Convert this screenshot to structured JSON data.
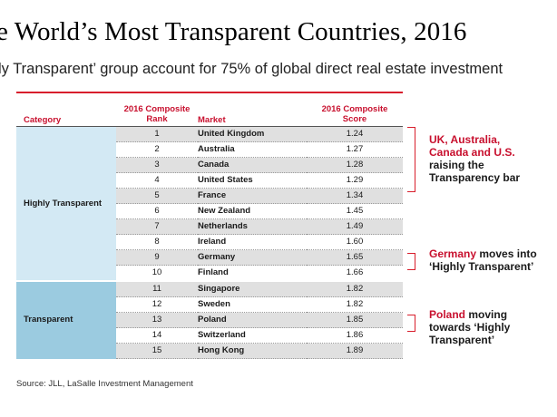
{
  "title": "e World’s Most Transparent Countries, 2016",
  "subtitle": "ly Transparent’ group account for 75% of global direct real estate investment",
  "table": {
    "headers": {
      "category": "Category",
      "rank": "2016 Composite\nRank",
      "market": "Market",
      "score": "2016 Composite\nScore"
    },
    "groups": [
      {
        "label": "Highly Transparent",
        "color": "#d3e9f4"
      },
      {
        "label": "Transparent",
        "color": "#9bcbe0"
      }
    ],
    "rows": [
      {
        "rank": "1",
        "market": "United Kingdom",
        "score": "1.24"
      },
      {
        "rank": "2",
        "market": "Australia",
        "score": "1.27"
      },
      {
        "rank": "3",
        "market": "Canada",
        "score": "1.28"
      },
      {
        "rank": "4",
        "market": "United States",
        "score": "1.29"
      },
      {
        "rank": "5",
        "market": "France",
        "score": "1.34"
      },
      {
        "rank": "6",
        "market": "New Zealand",
        "score": "1.45"
      },
      {
        "rank": "7",
        "market": "Netherlands",
        "score": "1.49"
      },
      {
        "rank": "8",
        "market": "Ireland",
        "score": "1.60"
      },
      {
        "rank": "9",
        "market": "Germany",
        "score": "1.65"
      },
      {
        "rank": "10",
        "market": "Finland",
        "score": "1.66"
      },
      {
        "rank": "11",
        "market": "Singapore",
        "score": "1.82"
      },
      {
        "rank": "12",
        "market": "Sweden",
        "score": "1.82"
      },
      {
        "rank": "13",
        "market": "Poland",
        "score": "1.85"
      },
      {
        "rank": "14",
        "market": "Switzerland",
        "score": "1.86"
      },
      {
        "rank": "15",
        "market": "Hong Kong",
        "score": "1.89"
      }
    ]
  },
  "notes": [
    {
      "red": "UK, Australia, Canada and U.S.",
      "black": "raising the Transparency bar"
    },
    {
      "red": "Germany",
      "black": "moves into ‘Highly Transparent’"
    },
    {
      "red": "Poland",
      "black": "moving towards ‘Highly Transparent’"
    }
  ],
  "source": "Source: JLL, LaSalle Investment Management",
  "colors": {
    "accent": "#c8102e",
    "highly_transparent": "#d3e9f4",
    "transparent": "#9bcbe0",
    "row_shade": "#e0e0e0"
  }
}
